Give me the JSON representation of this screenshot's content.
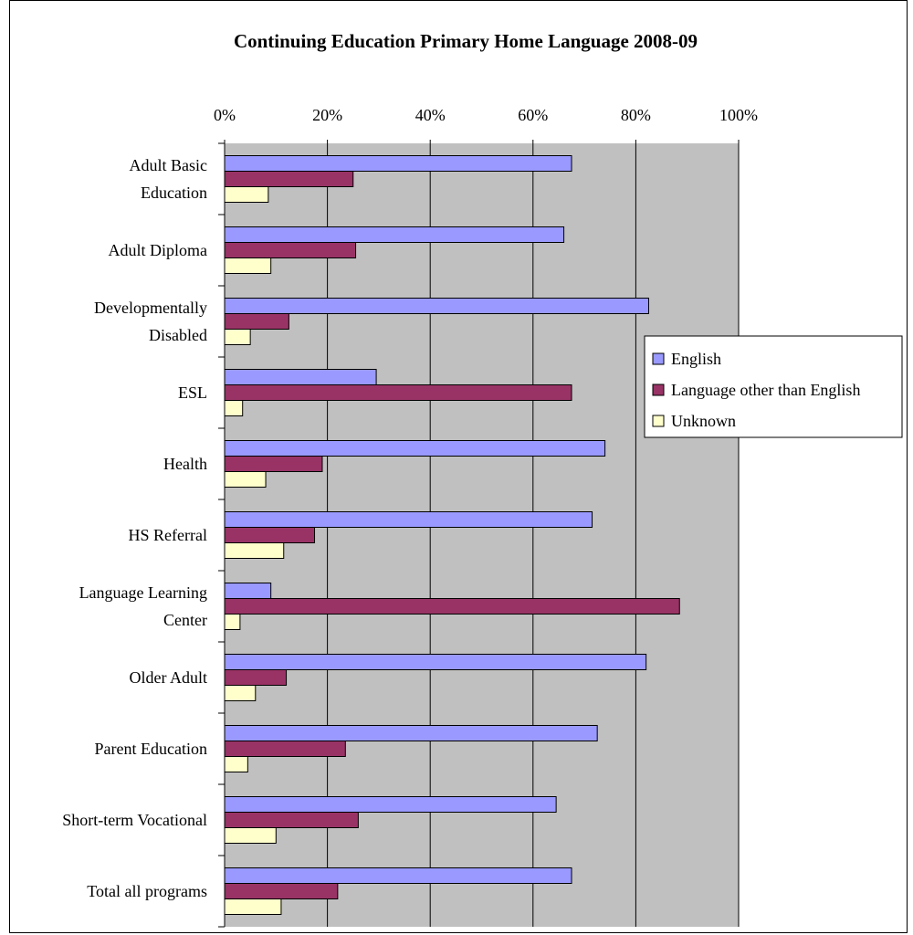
{
  "chart_data": {
    "type": "bar",
    "orientation": "horizontal",
    "title": "Continuing Education Primary Home Language 2008-09",
    "xlabel": "",
    "ylabel": "",
    "xlim": [
      0,
      100
    ],
    "x_ticks": [
      "0%",
      "20%",
      "40%",
      "60%",
      "80%",
      "100%"
    ],
    "x_axis_position": "top",
    "grid": true,
    "legend_position": "right",
    "categories": [
      [
        "Adult Basic",
        "Education"
      ],
      [
        "Adult Diploma"
      ],
      [
        "Developmentally",
        "Disabled"
      ],
      [
        "ESL"
      ],
      [
        "Health"
      ],
      [
        "HS Referral"
      ],
      [
        "Language Learning",
        "Center"
      ],
      [
        "Older Adult"
      ],
      [
        "Parent Education"
      ],
      [
        "Short-term Vocational"
      ],
      [
        "Total all programs"
      ]
    ],
    "series": [
      {
        "name": "English",
        "color": "#9999ff",
        "values": [
          67.5,
          66,
          82.5,
          29.5,
          74,
          71.5,
          9,
          82,
          72.5,
          64.5,
          67.5
        ]
      },
      {
        "name": "Language other than English",
        "color": "#993366",
        "values": [
          25,
          25.5,
          12.5,
          67.5,
          19,
          17.5,
          88.5,
          12,
          23.5,
          26,
          22
        ]
      },
      {
        "name": "Unknown",
        "color": "#ffffcc",
        "values": [
          8.5,
          9,
          5,
          3.5,
          8,
          11.5,
          3,
          6,
          4.5,
          10,
          11
        ]
      }
    ],
    "colors": {
      "plot_background": "#c0c0c0",
      "gridline": "#000000",
      "bar_outline": "#000000"
    }
  }
}
